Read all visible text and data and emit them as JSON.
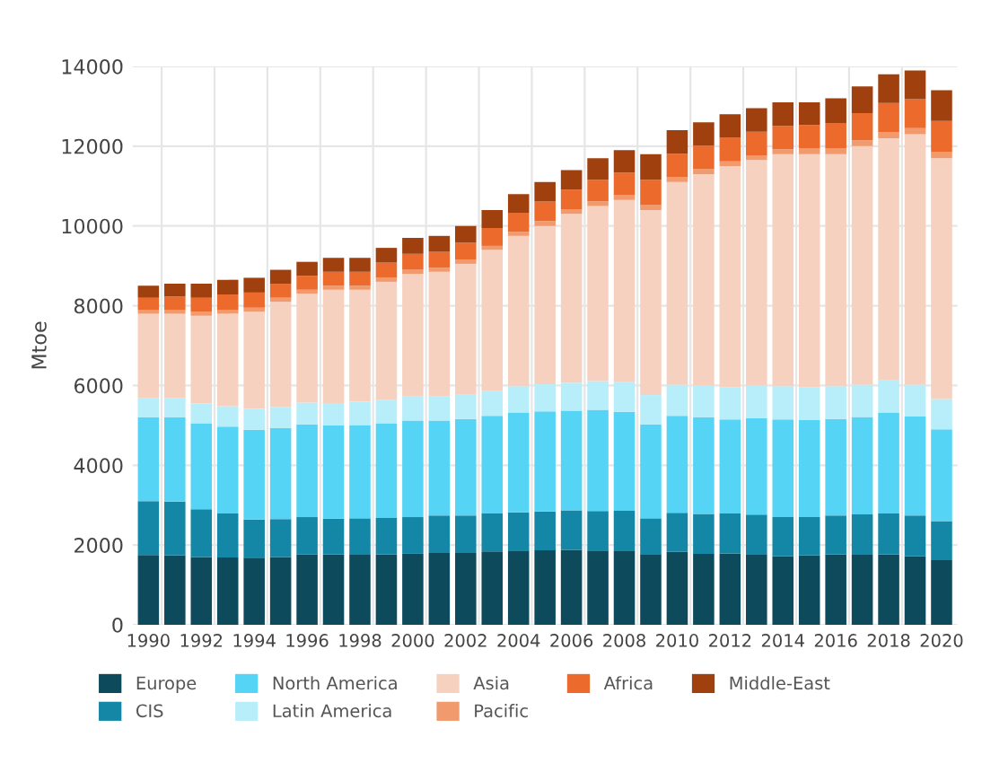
{
  "chart_data": {
    "type": "bar",
    "stacked": true,
    "ylabel": "Mtoe",
    "categories": [
      "1990",
      null,
      "1992",
      null,
      "1994",
      null,
      "1996",
      null,
      "1998",
      null,
      "2000",
      null,
      "2002",
      null,
      "2004",
      null,
      "2006",
      null,
      "2008",
      null,
      "2010",
      null,
      "2012",
      null,
      "2014",
      null,
      "2016",
      null,
      "2018",
      null,
      "2020"
    ],
    "series": [
      {
        "name": "Europe",
        "color": "#0d4a5c",
        "values": [
          1750,
          1740,
          1700,
          1690,
          1680,
          1700,
          1760,
          1760,
          1770,
          1760,
          1780,
          1800,
          1800,
          1840,
          1860,
          1870,
          1880,
          1860,
          1860,
          1770,
          1830,
          1780,
          1790,
          1770,
          1720,
          1740,
          1760,
          1770,
          1760,
          1720,
          1620
        ]
      },
      {
        "name": "CIS",
        "color": "#1487a6",
        "values": [
          1350,
          1350,
          1200,
          1100,
          960,
          950,
          940,
          900,
          900,
          920,
          920,
          940,
          940,
          960,
          960,
          970,
          990,
          990,
          1000,
          900,
          980,
          1000,
          1000,
          990,
          990,
          960,
          980,
          1000,
          1030,
          1020,
          980
        ]
      },
      {
        "name": "North America",
        "color": "#56d4f5",
        "values": [
          2100,
          2110,
          2150,
          2180,
          2250,
          2280,
          2320,
          2340,
          2340,
          2370,
          2420,
          2380,
          2420,
          2440,
          2500,
          2510,
          2500,
          2540,
          2480,
          2350,
          2430,
          2420,
          2360,
          2420,
          2440,
          2430,
          2420,
          2440,
          2530,
          2480,
          2300
        ]
      },
      {
        "name": "Latin America",
        "color": "#b7eefa",
        "values": [
          480,
          490,
          500,
          510,
          520,
          530,
          550,
          560,
          580,
          590,
          600,
          610,
          610,
          630,
          660,
          680,
          700,
          720,
          740,
          740,
          780,
          800,
          810,
          820,
          830,
          830,
          820,
          810,
          810,
          800,
          760
        ]
      },
      {
        "name": "Asia",
        "color": "#f7d1c0",
        "values": [
          2120,
          2110,
          2200,
          2320,
          2440,
          2640,
          2730,
          2840,
          2810,
          2960,
          3080,
          3120,
          3280,
          3530,
          3770,
          3970,
          4230,
          4390,
          4570,
          4640,
          5080,
          5300,
          5540,
          5650,
          5820,
          5840,
          5820,
          5980,
          6070,
          6280,
          6040
        ]
      },
      {
        "name": "Pacific",
        "color": "#f09a6d",
        "values": [
          100,
          100,
          100,
          100,
          100,
          100,
          100,
          100,
          100,
          100,
          100,
          100,
          100,
          100,
          100,
          120,
          120,
          120,
          120,
          120,
          120,
          120,
          120,
          120,
          120,
          150,
          150,
          150,
          150,
          150,
          150
        ]
      },
      {
        "name": "Africa",
        "color": "#ec6a2c",
        "values": [
          300,
          330,
          350,
          380,
          380,
          350,
          350,
          350,
          350,
          380,
          400,
          400,
          430,
          450,
          480,
          490,
          490,
          540,
          570,
          640,
          590,
          590,
          590,
          590,
          590,
          580,
          630,
          680,
          730,
          730,
          780
        ]
      },
      {
        "name": "Middle-East",
        "color": "#a0400f",
        "values": [
          300,
          320,
          350,
          370,
          370,
          350,
          350,
          350,
          350,
          370,
          400,
          400,
          420,
          450,
          470,
          490,
          490,
          540,
          560,
          640,
          590,
          590,
          590,
          590,
          590,
          570,
          620,
          670,
          720,
          720,
          770
        ]
      }
    ],
    "ylim": [
      0,
      14000
    ],
    "yticks": [
      0,
      2000,
      4000,
      6000,
      8000,
      10000,
      12000,
      14000
    ],
    "grid": true,
    "legend": "bottom"
  }
}
